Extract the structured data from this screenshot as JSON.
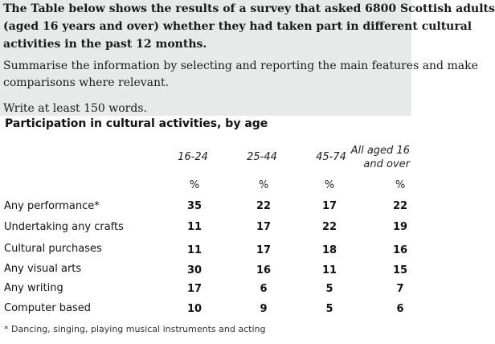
{
  "prompt": {
    "question_lines": [
      "The Table below shows the results of a survey that asked 6800 Scottish adults",
      "(aged 16 years and over) whether they had taken part in different cultural",
      "activities in the past 12 months."
    ],
    "instruction_lines": [
      "Summarise the information by selecting and reporting the main features and make",
      "comparisons where relevant."
    ],
    "word_count": "Write at least 150 words."
  },
  "table": {
    "title": "Participation in cultural activities, by age",
    "columns": [
      {
        "label_lines": [
          "16-24"
        ],
        "unit": "%"
      },
      {
        "label_lines": [
          "25-44"
        ],
        "unit": "%"
      },
      {
        "label_lines": [
          "45-74"
        ],
        "unit": "%"
      },
      {
        "label_lines": [
          "All aged 16",
          "and over"
        ],
        "unit": "%"
      }
    ],
    "rows": [
      {
        "label": "Any performance*",
        "values": [
          "35",
          "22",
          "17",
          "22"
        ]
      },
      {
        "label": "Undertaking any crafts",
        "values": [
          "11",
          "17",
          "22",
          "19"
        ]
      },
      {
        "label": "Cultural purchases",
        "values": [
          "11",
          "17",
          "18",
          "16"
        ]
      },
      {
        "label": "Any visual arts",
        "values": [
          "30",
          "16",
          "11",
          "15"
        ]
      },
      {
        "label": "Any writing",
        "values": [
          "17",
          "6",
          "5",
          "7"
        ]
      },
      {
        "label": "Computer based",
        "values": [
          "10",
          "9",
          "5",
          "6"
        ]
      }
    ],
    "footnote": "* Dancing, singing, playing musical instruments and acting"
  }
}
